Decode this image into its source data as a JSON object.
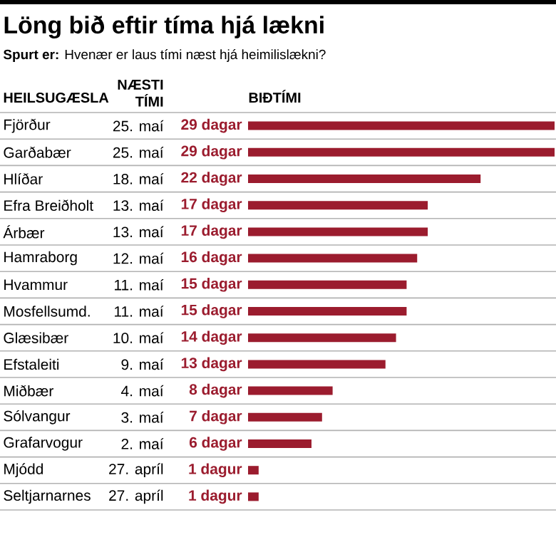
{
  "chart_data": {
    "type": "bar",
    "orientation": "horizontal",
    "title": "Löng bið eftir tíma hjá lækni",
    "subtitle": "**Spurt er:**  Hvenær er laus tími næst hjá heimilislækni?",
    "xlabel": "BIÐTÍMI",
    "categories": [
      "Fjörður",
      "Garðabær",
      "Hlíðar",
      "Efra Breiðholt",
      "Árbær",
      "Hamraborg",
      "Hvammur",
      "Mosfellsumd.",
      "Glæsibær",
      "Efstaleiti",
      "Miðbær",
      "Sólvangur",
      "Grafarvogur",
      "Mjódd",
      "Seltjarnarnes"
    ],
    "values": [
      29,
      29,
      22,
      17,
      17,
      16,
      15,
      15,
      14,
      13,
      8,
      7,
      6,
      1,
      1
    ],
    "value_labels": [
      "29 dagar",
      "29 dagar",
      "22 dagar",
      "17 dagar",
      "17 dagar",
      "16 dagar",
      "15 dagar",
      "15 dagar",
      "14 dagar",
      "13 dagar",
      "8 dagar",
      "7 dagar",
      "6 dagar",
      "1 dagur",
      "1 dagur"
    ],
    "color": "#9b1c2e",
    "annotations": [
      "HEILSUGÆSLA",
      "NÆSTI TÍMI",
      "25. maí",
      "25. maí",
      "18. maí",
      "13. maí",
      "13. maí",
      "12. maí",
      "11. maí",
      "11. maí",
      "10. maí",
      "9. maí",
      "4. maí",
      "3. maí",
      "2. maí",
      "27. apríl",
      "27. apríl"
    ]
  }
}
